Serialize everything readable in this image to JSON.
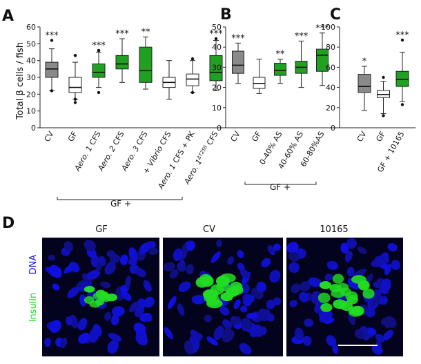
{
  "colors": {
    "gray": "#8a8a8a",
    "white": "#ffffff",
    "green": "#22a022",
    "stroke": "#222222"
  },
  "panels": {
    "A": "A",
    "B": "B",
    "C": "C",
    "D": "D"
  },
  "chart_data": [
    {
      "type": "box",
      "panel": "A",
      "ylabel": "Total β cells / fish",
      "ylim": [
        0,
        60
      ],
      "ticks": [
        0,
        10,
        20,
        30,
        40,
        50,
        60
      ],
      "group_label": "GF +",
      "categories": [
        "CV",
        "GF",
        "Aero. 1 CFS",
        "Aero. 2 CFS",
        "Aero. 3 CFS",
        "+ Vibrio CFS",
        "Aero. 1 CFS + PK",
        "Aero. 1ΔT2SS CFS"
      ],
      "tick_label_parts": [
        {
          "ital": "",
          "rest": "CV"
        },
        {
          "ital": "",
          "rest": "GF"
        },
        {
          "ital": "Aero. 1",
          "rest": " CFS"
        },
        {
          "ital": "Aero. 2",
          "rest": " CFS"
        },
        {
          "ital": "Aero. 3",
          "rest": " CFS"
        },
        {
          "ital": "+ Vibrio",
          "rest": " CFS"
        },
        {
          "ital": "Aero. 1",
          "rest": " CFS + PK"
        },
        {
          "ital": "Aero. 1",
          "sup": "ΔT2SS",
          "rest": " CFS"
        }
      ],
      "fills": [
        "gray",
        "white",
        "green",
        "green",
        "green",
        "white",
        "white",
        "green"
      ],
      "boxes": [
        {
          "wl": 22,
          "q1": 30,
          "med": 35,
          "q3": 39,
          "wh": 47,
          "out": [
            22,
            52
          ]
        },
        {
          "wl": 17,
          "q1": 21,
          "med": 24,
          "q3": 30,
          "wh": 39,
          "out": [
            15,
            17,
            43,
            43
          ]
        },
        {
          "wl": 24,
          "q1": 30,
          "med": 33,
          "q3": 38,
          "wh": 45,
          "out": [
            21,
            46,
            46
          ]
        },
        {
          "wl": 27,
          "q1": 35,
          "med": 38,
          "q3": 43,
          "wh": 53,
          "out": []
        },
        {
          "wl": 23,
          "q1": 27,
          "med": 34,
          "q3": 48,
          "wh": 54,
          "out": []
        },
        {
          "wl": 17,
          "q1": 24,
          "med": 27,
          "q3": 30,
          "wh": 40,
          "out": []
        },
        {
          "wl": 21,
          "q1": 25,
          "med": 29,
          "q3": 32,
          "wh": 40,
          "out": [
            21,
            41
          ]
        },
        {
          "wl": 22,
          "q1": 28,
          "med": 33,
          "q3": 43,
          "wh": 52,
          "out": [
            53
          ]
        }
      ],
      "sig": [
        "***",
        "",
        "***",
        "***",
        "**",
        "",
        "",
        "***"
      ]
    },
    {
      "type": "box",
      "panel": "B",
      "ylim": [
        0,
        50
      ],
      "ticks": [
        0,
        10,
        20,
        30,
        40,
        50
      ],
      "group_label": "GF +",
      "categories": [
        "CV",
        "GF",
        "0-40% AS",
        "40-60% AS",
        "60-80%AS"
      ],
      "fills": [
        "gray",
        "white",
        "green",
        "green",
        "green"
      ],
      "boxes": [
        {
          "wl": 22,
          "q1": 27,
          "med": 31,
          "q3": 38,
          "wh": 42,
          "out": []
        },
        {
          "wl": 17,
          "q1": 19.5,
          "med": 22,
          "q3": 25,
          "wh": 34,
          "out": []
        },
        {
          "wl": 22,
          "q1": 26,
          "med": 28.5,
          "q3": 32,
          "wh": 34,
          "out": []
        },
        {
          "wl": 20,
          "q1": 27,
          "med": 30,
          "q3": 33,
          "wh": 43,
          "out": []
        },
        {
          "wl": 21,
          "q1": 28,
          "med": 36,
          "q3": 39,
          "wh": 47,
          "out": []
        }
      ],
      "sig": [
        "***",
        "",
        "**",
        "***",
        "***"
      ]
    },
    {
      "type": "box",
      "panel": "C",
      "ylim": [
        0,
        100
      ],
      "ticks": [
        0,
        20,
        40,
        60,
        80,
        100
      ],
      "categories": [
        "CV",
        "GF",
        "GF + 10165"
      ],
      "fills": [
        "gray",
        "white",
        "green"
      ],
      "boxes": [
        {
          "wl": 17,
          "q1": 35,
          "med": 41,
          "q3": 53,
          "wh": 61,
          "out": []
        },
        {
          "wl": 14,
          "q1": 30,
          "med": 33,
          "q3": 37,
          "wh": 46,
          "out": [
            12,
            50
          ]
        },
        {
          "wl": 26,
          "q1": 41,
          "med": 48,
          "q3": 56,
          "wh": 75,
          "out": [
            23,
            87
          ]
        }
      ],
      "sig": [
        "*",
        "",
        "***"
      ]
    }
  ],
  "microscopy": {
    "titles": [
      "GF",
      "CV",
      "10165"
    ],
    "stain_dna": "DNA",
    "stain_insulin": "Insulin",
    "dna_color": "#1010c8",
    "insulin_color": "#22dd22"
  }
}
